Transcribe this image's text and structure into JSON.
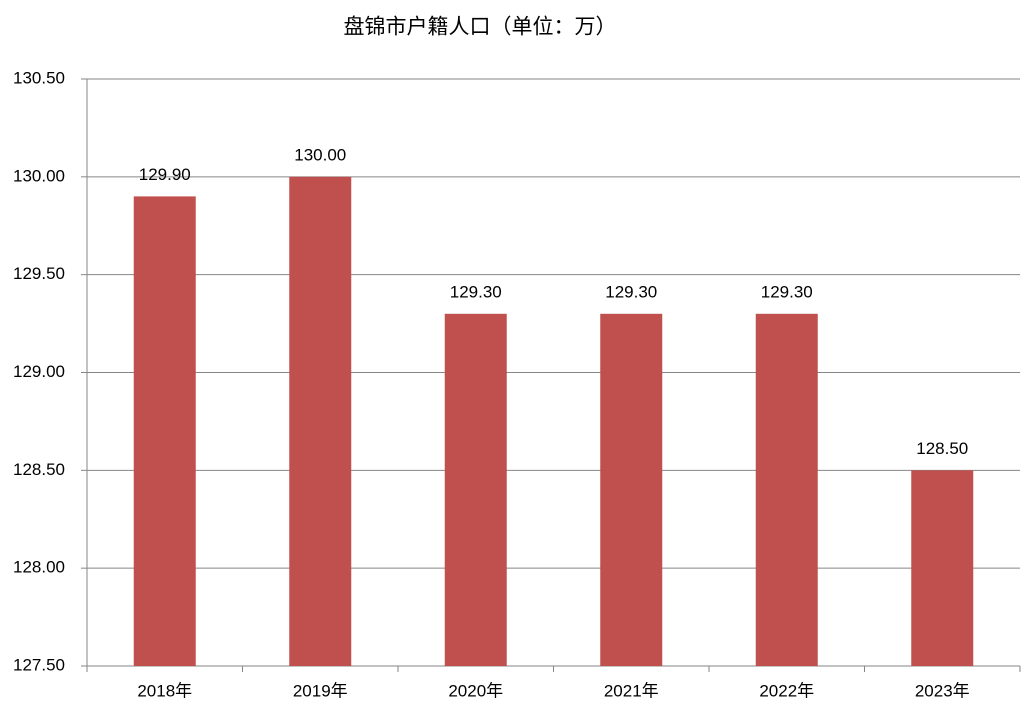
{
  "chart_data": {
    "type": "bar",
    "title": "盘锦市户籍人口（单位：万）",
    "categories": [
      "2018年",
      "2019年",
      "2020年",
      "2021年",
      "2022年",
      "2023年"
    ],
    "values": [
      129.9,
      130.0,
      129.3,
      129.3,
      129.3,
      128.5
    ],
    "value_labels": [
      "129.90",
      "130.00",
      "129.30",
      "129.30",
      "129.30",
      "128.50"
    ],
    "color": "#c0504d",
    "ylim": [
      127.5,
      130.5
    ],
    "yticks": [
      {
        "value": 127.5,
        "label": "127.50"
      },
      {
        "value": 128,
        "label": "128.00"
      },
      {
        "value": 128.5,
        "label": "128.50"
      },
      {
        "value": 129,
        "label": "129.00"
      },
      {
        "value": 129.5,
        "label": "129.50"
      },
      {
        "value": 130,
        "label": "130.00"
      },
      {
        "value": 130.5,
        "label": "130.50"
      }
    ],
    "grid": true
  }
}
